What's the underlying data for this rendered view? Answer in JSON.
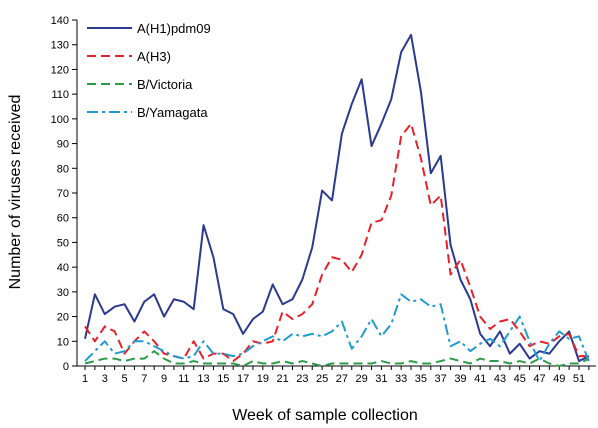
{
  "chart_data": {
    "type": "line",
    "title": "",
    "xlabel": "Week of sample collection",
    "ylabel": "Number of viruses received",
    "xlim": [
      1,
      52
    ],
    "ylim": [
      0,
      140
    ],
    "x_ticks": [
      1,
      3,
      5,
      7,
      9,
      11,
      13,
      15,
      17,
      19,
      21,
      23,
      25,
      27,
      29,
      31,
      33,
      35,
      37,
      39,
      41,
      43,
      45,
      47,
      49,
      51
    ],
    "y_ticks": [
      0,
      10,
      20,
      30,
      40,
      50,
      60,
      70,
      80,
      90,
      100,
      110,
      120,
      130,
      140
    ],
    "legend_position": "top-left",
    "grid": false,
    "x": [
      1,
      2,
      3,
      4,
      5,
      6,
      7,
      8,
      9,
      10,
      11,
      12,
      13,
      14,
      15,
      16,
      17,
      18,
      19,
      20,
      21,
      22,
      23,
      24,
      25,
      26,
      27,
      28,
      29,
      30,
      31,
      32,
      33,
      34,
      35,
      36,
      37,
      38,
      39,
      40,
      41,
      42,
      43,
      44,
      45,
      46,
      47,
      48,
      49,
      50,
      51,
      52
    ],
    "series": [
      {
        "name": "A(H1)pdm09",
        "color": "#2b3990",
        "dash": "solid",
        "values": [
          11,
          29,
          21,
          24,
          25,
          18,
          26,
          29,
          20,
          27,
          26,
          23,
          57,
          44,
          23,
          21,
          13,
          19,
          22,
          33,
          25,
          27,
          35,
          48,
          71,
          67,
          94,
          106,
          116,
          89,
          98,
          108,
          127,
          134,
          111,
          78,
          85,
          49,
          35,
          27,
          13,
          8,
          14,
          5,
          9,
          3,
          6,
          5,
          10,
          14,
          2,
          4
        ]
      },
      {
        "name": "A(H3)",
        "color": "#e8202a",
        "dash": "dashed",
        "values": [
          16,
          10,
          16,
          14,
          5,
          10,
          14,
          10,
          5,
          4,
          3,
          10,
          3,
          5,
          5,
          2,
          5,
          10,
          9,
          10,
          22,
          19,
          21,
          25,
          37,
          44,
          43,
          38,
          45,
          58,
          59,
          69,
          93,
          98,
          84,
          65,
          69,
          37,
          43,
          32,
          20,
          15,
          18,
          19,
          14,
          8,
          10,
          9,
          12,
          13,
          4,
          4
        ]
      },
      {
        "name": "B/Victoria",
        "color": "#2e9b47",
        "dash": "dashed",
        "values": [
          1,
          2,
          3,
          3,
          2,
          3,
          3,
          6,
          3,
          1,
          1,
          2,
          1,
          1,
          1,
          1,
          0,
          2,
          1,
          1,
          2,
          1,
          2,
          1,
          0,
          1,
          1,
          1,
          1,
          1,
          2,
          1,
          1,
          2,
          1,
          1,
          2,
          3,
          2,
          1,
          3,
          2,
          2,
          1,
          2,
          1,
          3,
          1,
          0,
          1,
          1,
          3
        ]
      },
      {
        "name": "B/Yamagata",
        "color": "#1f9bd0",
        "dash": "dashdot",
        "values": [
          2,
          6,
          10,
          5,
          6,
          10,
          10,
          8,
          6,
          4,
          3,
          4,
          10,
          5,
          5,
          4,
          5,
          8,
          10,
          12,
          10,
          13,
          12,
          13,
          12,
          14,
          18,
          7,
          12,
          19,
          12,
          17,
          29,
          26,
          27,
          24,
          25,
          8,
          10,
          6,
          9,
          11,
          8,
          14,
          20,
          10,
          2,
          9,
          14,
          11,
          12,
          2
        ]
      }
    ]
  }
}
